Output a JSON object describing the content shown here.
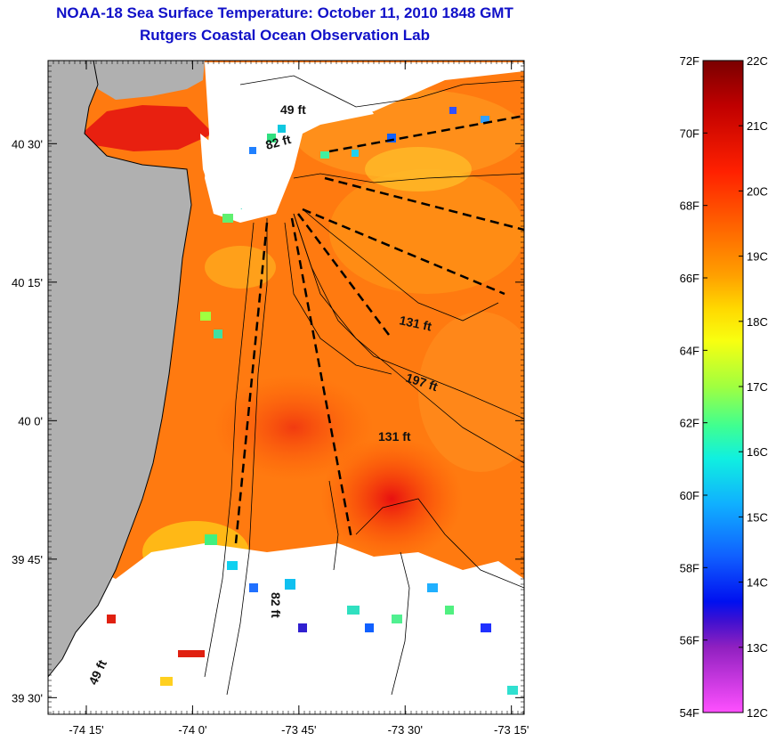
{
  "title_line1": "NOAA-18 Sea Surface Temperature:  October 11, 2010 1848 GMT",
  "title_line2": "Rutgers Coastal Ocean Observation Lab",
  "map": {
    "lat_ticks": [
      {
        "label": "40 30'",
        "value": 40.5
      },
      {
        "label": "40 15'",
        "value": 40.25
      },
      {
        "label": "40 0'",
        "value": 40.0
      },
      {
        "label": "39 45'",
        "value": 39.75
      },
      {
        "label": "39 30'",
        "value": 39.5
      }
    ],
    "lon_ticks": [
      {
        "label": "-74 15'",
        "value": -74.25
      },
      {
        "label": "-74 0'",
        "value": -74.0
      },
      {
        "label": "-73 45'",
        "value": -73.75
      },
      {
        "label": "-73 30'",
        "value": -73.5
      },
      {
        "label": "-73 15'",
        "value": -73.25
      }
    ],
    "lat_range": [
      39.47,
      40.65
    ],
    "lon_range": [
      -74.34,
      -73.22
    ],
    "depth_labels": [
      "49 ft",
      "82 ft",
      "131 ft",
      "197 ft",
      "131 ft",
      "82 ft",
      "49 ft"
    ],
    "land_color": "#b0b0b0",
    "cloud_color": "#ffffff"
  },
  "colorbar": {
    "fahrenheit": [
      "72F",
      "70F",
      "68F",
      "66F",
      "64F",
      "62F",
      "60F",
      "58F",
      "56F",
      "54F"
    ],
    "celsius": [
      "22C",
      "21C",
      "20C",
      "19C",
      "18C",
      "17C",
      "16C",
      "15C",
      "14C",
      "13C",
      "12C"
    ],
    "colors_top_to_bottom": [
      "#7a0000",
      "#d01010",
      "#ff4000",
      "#ff9000",
      "#ffd000",
      "#e0ff20",
      "#60ff80",
      "#10e0e0",
      "#10a0ff",
      "#0010ff",
      "#6010c0",
      "#ff40ff"
    ]
  }
}
